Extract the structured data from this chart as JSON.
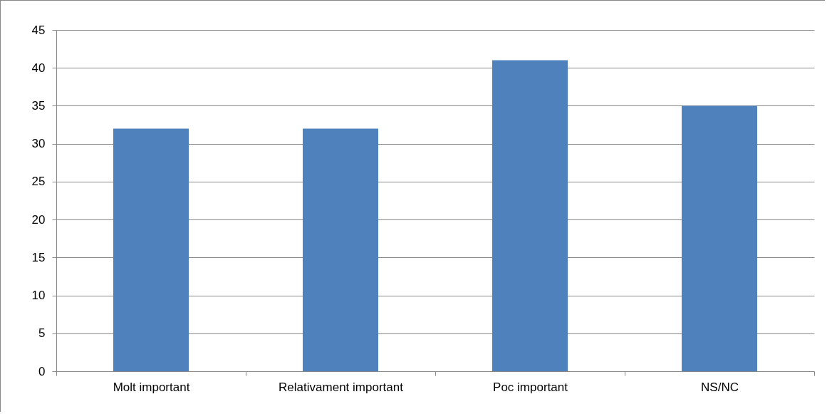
{
  "chart_data": {
    "type": "bar",
    "categories": [
      "Molt important",
      "Relativament important",
      "Poc important",
      "NS/NC"
    ],
    "values": [
      32,
      32,
      41,
      35
    ],
    "color": "#4f81bd",
    "ylim": [
      0,
      45
    ],
    "yticks": [
      0,
      5,
      10,
      15,
      20,
      25,
      30,
      35,
      40,
      45
    ],
    "grid": "y"
  }
}
